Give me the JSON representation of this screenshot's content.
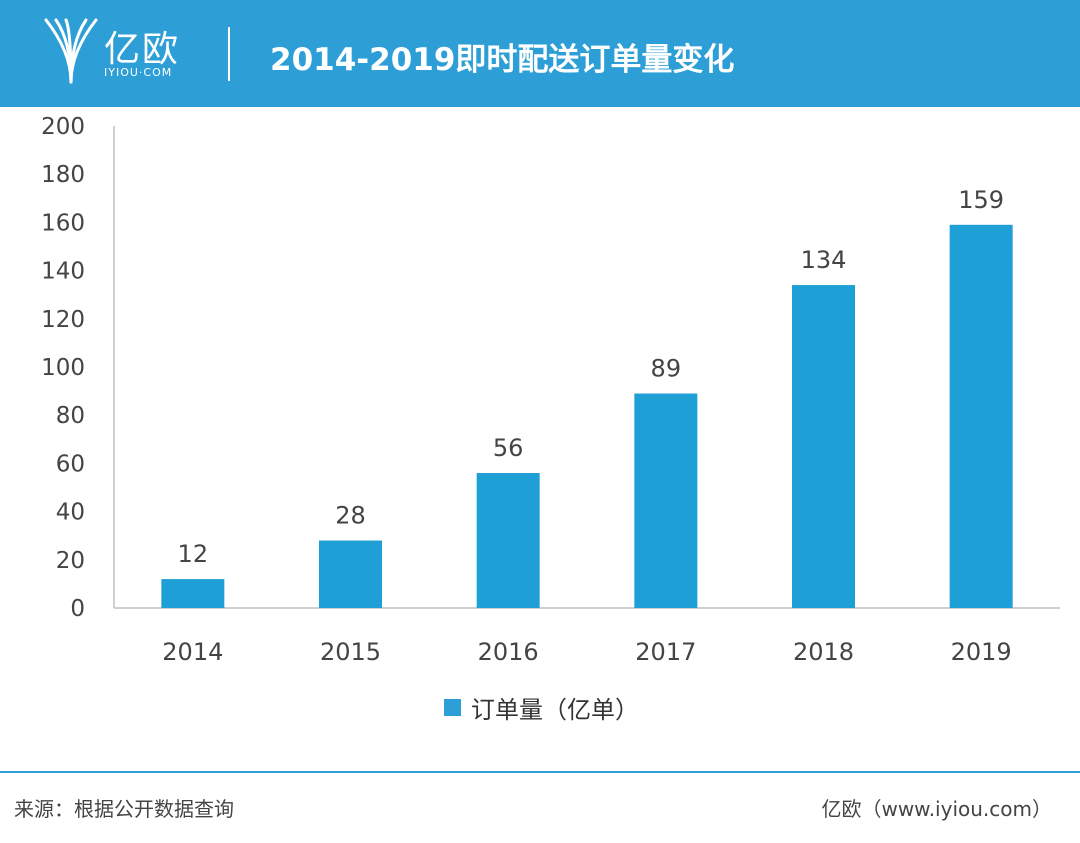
{
  "header": {
    "logo_cn": "亿欧",
    "logo_en": "IYIOU·COM",
    "title": "2014-2019即时配送订单量变化"
  },
  "footer": {
    "source": "来源：根据公开数据查询",
    "credit": "亿欧（www.iyiou.com）"
  },
  "colors": {
    "brand": "#2d9fd6",
    "bar": "#1e9fd6",
    "text": "#444444"
  },
  "icons": {
    "logo": "iyiou-logo-icon"
  },
  "chart_data": {
    "type": "bar",
    "title": "2014-2019即时配送订单量变化",
    "categories": [
      "2014",
      "2015",
      "2016",
      "2017",
      "2018",
      "2019"
    ],
    "series": [
      {
        "name": "订单量（亿单）",
        "values": [
          12,
          28,
          56,
          89,
          134,
          159
        ]
      }
    ],
    "ylim": [
      0,
      200
    ],
    "yticks": [
      0,
      20,
      40,
      60,
      80,
      100,
      120,
      140,
      160,
      180,
      200
    ],
    "xlabel": "",
    "ylabel": "",
    "grid": false,
    "legend": "bottom-center",
    "data_labels": true
  }
}
